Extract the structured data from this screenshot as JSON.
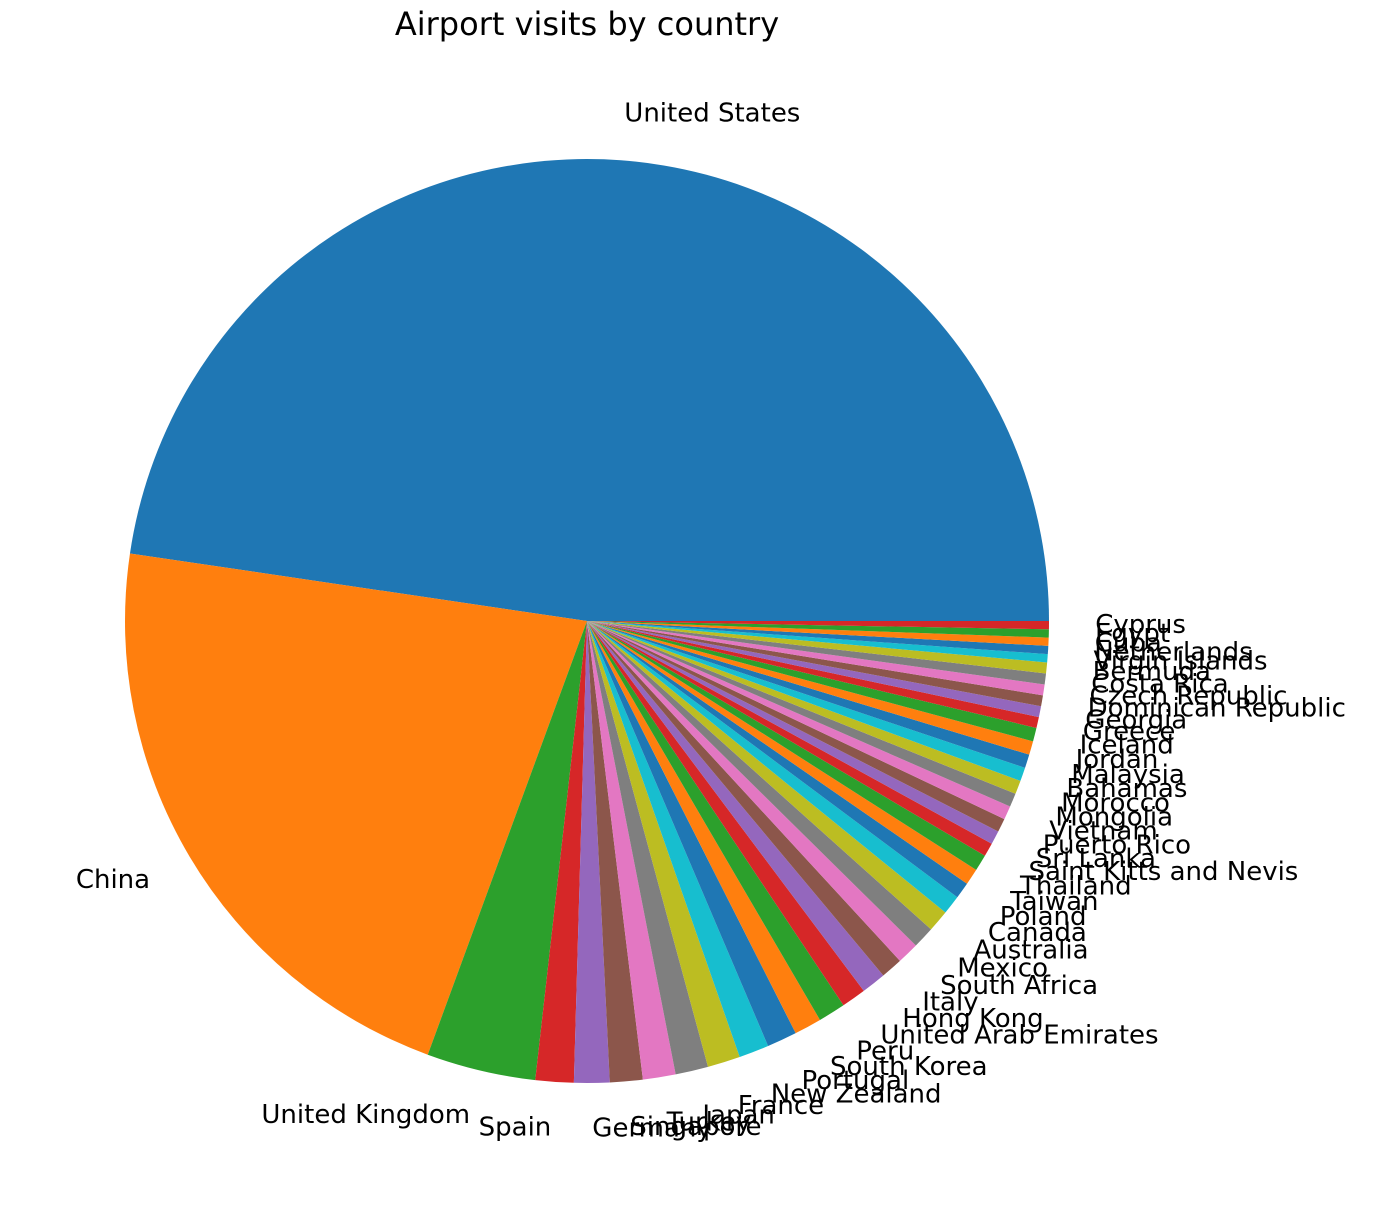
{
  "chart_data": {
    "type": "pie",
    "title": "Airport visits by country",
    "start_angle_deg": 0,
    "direction": "counterclockwise",
    "palette": [
      "#1f77b4",
      "#ff7f0e",
      "#2ca02c",
      "#d62728",
      "#9467bd",
      "#8c564b",
      "#e377c2",
      "#7f7f7f",
      "#bcbd22",
      "#17becf"
    ],
    "slices": [
      {
        "label": "United States",
        "value": 500
      },
      {
        "label": "China",
        "value": 228
      },
      {
        "label": "United Kingdom",
        "value": 40
      },
      {
        "label": "Spain",
        "value": 14
      },
      {
        "label": "Germany",
        "value": 13
      },
      {
        "label": "Singapore",
        "value": 12
      },
      {
        "label": "Turkey",
        "value": 12
      },
      {
        "label": "Japan",
        "value": 12
      },
      {
        "label": "France",
        "value": 12
      },
      {
        "label": "New Zealand",
        "value": 11
      },
      {
        "label": "Portugal",
        "value": 11
      },
      {
        "label": "South Korea",
        "value": 10
      },
      {
        "label": "Peru",
        "value": 10
      },
      {
        "label": "United Arab Emirates",
        "value": 9
      },
      {
        "label": "Hong Kong",
        "value": 9
      },
      {
        "label": "Italy",
        "value": 8
      },
      {
        "label": "South Africa",
        "value": 8
      },
      {
        "label": "Mexico",
        "value": 8
      },
      {
        "label": "Australia",
        "value": 8
      },
      {
        "label": "Canada",
        "value": 7
      },
      {
        "label": "Poland",
        "value": 6
      },
      {
        "label": "Taiwan",
        "value": 6
      },
      {
        "label": "Thailand",
        "value": 6
      },
      {
        "label": "Saint Kitts and Nevis",
        "value": 5
      },
      {
        "label": "Sri Lanka",
        "value": 5
      },
      {
        "label": "Puerto Rico",
        "value": 5
      },
      {
        "label": "Vietnam",
        "value": 5
      },
      {
        "label": "Mongolia",
        "value": 5
      },
      {
        "label": "Morocco",
        "value": 5
      },
      {
        "label": "Bahamas",
        "value": 5
      },
      {
        "label": "Malaysia",
        "value": 5
      },
      {
        "label": "Jordan",
        "value": 5
      },
      {
        "label": "Iceland",
        "value": 5
      },
      {
        "label": "Greece",
        "value": 4
      },
      {
        "label": "Georgia",
        "value": 4
      },
      {
        "label": "Dominican Republic",
        "value": 4
      },
      {
        "label": "Czech Republic",
        "value": 4
      },
      {
        "label": "Costa Rica",
        "value": 4
      },
      {
        "label": "Bermuda",
        "value": 4
      },
      {
        "label": "Virgin Islands",
        "value": 3
      },
      {
        "label": "Netherlands",
        "value": 3
      },
      {
        "label": "Cuba",
        "value": 3
      },
      {
        "label": "Egypt",
        "value": 3
      },
      {
        "label": "Cyprus",
        "value": 3
      }
    ]
  }
}
